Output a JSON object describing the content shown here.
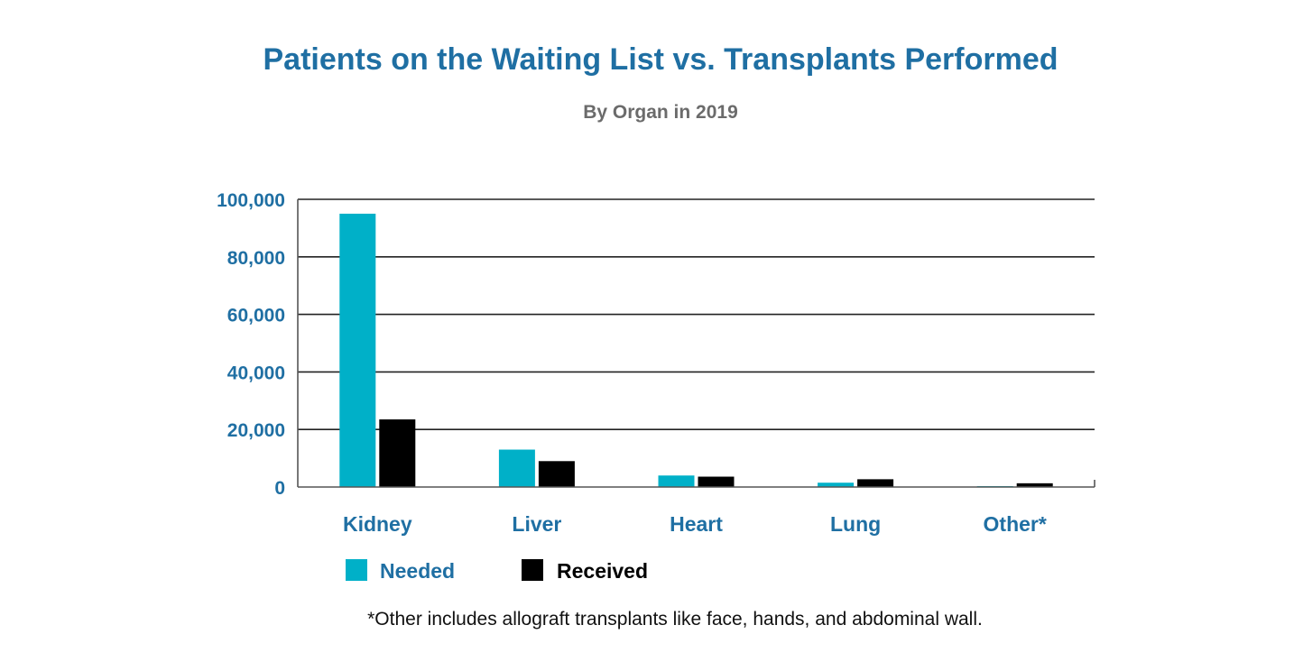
{
  "colors": {
    "title": "#1f6fa3",
    "subtitle": "#6b6b6b",
    "axis_text": "#1f6fa3",
    "needed": "#00b0c8",
    "received": "#000000",
    "gridline": "#222222",
    "footnote": "#111111",
    "legend_needed_text": "#1f6fa3",
    "legend_received_text": "#000000"
  },
  "chart_data": {
    "type": "bar",
    "title": "Patients on the Waiting List vs. Transplants Performed",
    "subtitle": "By Organ in 2019",
    "categories": [
      "Kidney",
      "Liver",
      "Heart",
      "Lung",
      "Other*"
    ],
    "series": [
      {
        "name": "Needed",
        "values": [
          95000,
          13000,
          4000,
          1500,
          300
        ]
      },
      {
        "name": "Received",
        "values": [
          23500,
          9000,
          3600,
          2700,
          1300
        ]
      }
    ],
    "y_ticks": [
      0,
      20000,
      40000,
      60000,
      80000,
      100000
    ],
    "y_tick_labels": [
      "0",
      "20,000",
      "40,000",
      "60,000",
      "80,000",
      "100,000"
    ],
    "ylim": [
      0,
      100000
    ],
    "grid": true,
    "legend_position": "bottom-left",
    "xlabel": "",
    "ylabel": "",
    "footnote": "*Other includes allograft transplants like face, hands, and abdominal wall."
  }
}
